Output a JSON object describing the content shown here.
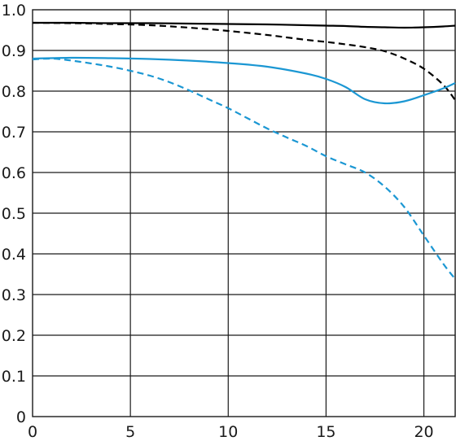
{
  "chart_data": {
    "type": "line",
    "title": "",
    "xlabel": "",
    "ylabel": "",
    "xlim": [
      0,
      21.6
    ],
    "ylim": [
      0,
      1.0
    ],
    "x_ticks": [
      0,
      5,
      10,
      15,
      20
    ],
    "x_tick_labels": [
      "0",
      "5",
      "10",
      "15",
      "20"
    ],
    "y_ticks": [
      0,
      0.1,
      0.2,
      0.3,
      0.4,
      0.5,
      0.6,
      0.7,
      0.8,
      0.9,
      1.0
    ],
    "y_tick_labels": [
      "0",
      "0.1",
      "0.2",
      "0.3",
      "0.4",
      "0.5",
      "0.6",
      "0.7",
      "0.8",
      "0.9",
      "1.0"
    ],
    "grid": true,
    "legend": "none",
    "series": [
      {
        "color": "#000000",
        "style": "solid",
        "x": [
          0,
          2,
          4,
          6,
          8,
          10,
          12,
          14,
          15,
          16,
          17,
          18,
          19,
          20,
          21,
          21.6
        ],
        "y": [
          0.968,
          0.968,
          0.967,
          0.967,
          0.966,
          0.965,
          0.964,
          0.962,
          0.961,
          0.96,
          0.958,
          0.957,
          0.956,
          0.957,
          0.959,
          0.961
        ]
      },
      {
        "color": "#000000",
        "style": "dashed",
        "x": [
          0,
          2,
          4,
          6,
          8,
          10,
          12,
          13,
          14,
          15,
          16,
          17,
          18,
          19,
          20,
          21,
          21.6
        ],
        "y": [
          0.968,
          0.967,
          0.965,
          0.962,
          0.956,
          0.948,
          0.938,
          0.932,
          0.926,
          0.921,
          0.915,
          0.908,
          0.898,
          0.88,
          0.855,
          0.815,
          0.778
        ]
      },
      {
        "color": "#1b97d3",
        "style": "solid",
        "x": [
          0,
          2,
          4,
          6,
          8,
          10,
          12,
          14,
          15,
          16,
          17,
          18,
          19,
          20,
          21,
          21.6
        ],
        "y": [
          0.88,
          0.882,
          0.881,
          0.879,
          0.875,
          0.869,
          0.86,
          0.843,
          0.83,
          0.81,
          0.78,
          0.77,
          0.775,
          0.79,
          0.807,
          0.82
        ]
      },
      {
        "color": "#1b97d3",
        "style": "dashed",
        "x": [
          0,
          1,
          2,
          3,
          4,
          5,
          6,
          7,
          8,
          9,
          10,
          11,
          12,
          13,
          14,
          15,
          16,
          17,
          18,
          19,
          20,
          21,
          21.6
        ],
        "y": [
          0.878,
          0.88,
          0.875,
          0.868,
          0.86,
          0.85,
          0.838,
          0.822,
          0.802,
          0.78,
          0.758,
          0.733,
          0.708,
          0.686,
          0.665,
          0.64,
          0.62,
          0.6,
          0.565,
          0.515,
          0.445,
          0.375,
          0.338
        ]
      }
    ]
  }
}
